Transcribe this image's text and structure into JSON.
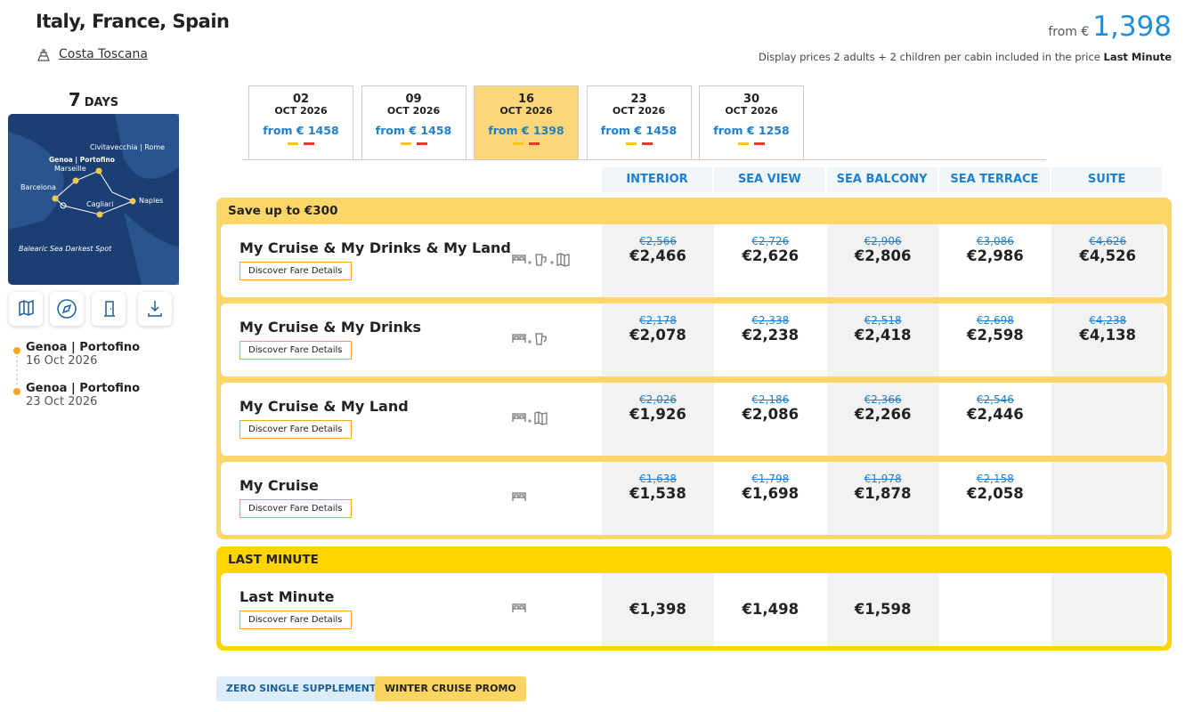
{
  "header": {
    "title": "Italy, France, Spain",
    "ship": "Costa Toscana",
    "from_label": "from €",
    "from_price": "1,398",
    "note": "Display prices 2 adults + 2 children per cabin included in the price",
    "note_bold": "Last Minute"
  },
  "itinerary": {
    "days": "7",
    "days_label": "DAYS",
    "map_labels": [
      "Civitavecchia | Rome",
      "Genoa | Portofino",
      "Marseille",
      "Barcelona",
      "Cagliari",
      "Naples",
      "Balearic Sea Darkest Spot"
    ],
    "stops": [
      {
        "port": "Genoa | Portofino",
        "date": "16 Oct 2026"
      },
      {
        "port": "Genoa | Portofino",
        "date": "23 Oct 2026"
      }
    ]
  },
  "dates": [
    {
      "day": "02",
      "month": "OCT 2026",
      "price": "from € 1458"
    },
    {
      "day": "09",
      "month": "OCT 2026",
      "price": "from € 1458"
    },
    {
      "day": "16",
      "month": "OCT 2026",
      "price": "from € 1398"
    },
    {
      "day": "23",
      "month": "OCT 2026",
      "price": "from € 1458"
    },
    {
      "day": "30",
      "month": "OCT 2026",
      "price": "from € 1258"
    }
  ],
  "cabins": [
    "INTERIOR",
    "SEA VIEW",
    "SEA BALCONY",
    "SEA TERRACE",
    "SUITE"
  ],
  "groups": [
    {
      "title": "Save up to €300",
      "fares": [
        {
          "name": "My Cruise & My Drinks & My Land",
          "link": "Discover Fare Details",
          "prices": [
            {
              "old": "€2,566",
              "new": "€2,466"
            },
            {
              "old": "€2,726",
              "new": "€2,626"
            },
            {
              "old": "€2,906",
              "new": "€2,806"
            },
            {
              "old": "€3,086",
              "new": "€2,986"
            },
            {
              "old": "€4,626",
              "new": "€4,526"
            }
          ]
        },
        {
          "name": "My Cruise & My Drinks",
          "link": "Discover Fare Details",
          "prices": [
            {
              "old": "€2,178",
              "new": "€2,078"
            },
            {
              "old": "€2,338",
              "new": "€2,238"
            },
            {
              "old": "€2,518",
              "new": "€2,418"
            },
            {
              "old": "€2,698",
              "new": "€2,598"
            },
            {
              "old": "€4,238",
              "new": "€4,138"
            }
          ]
        },
        {
          "name": "My Cruise & My Land",
          "link": "Discover Fare Details",
          "prices": [
            {
              "old": "€2,026",
              "new": "€1,926"
            },
            {
              "old": "€2,186",
              "new": "€2,086"
            },
            {
              "old": "€2,366",
              "new": "€2,266"
            },
            {
              "old": "€2,546",
              "new": "€2,446"
            }
          ]
        },
        {
          "name": "My Cruise",
          "link": "Discover Fare Details",
          "prices": [
            {
              "old": "€1,638",
              "new": "€1,538"
            },
            {
              "old": "€1,798",
              "new": "€1,698"
            },
            {
              "old": "€1,978",
              "new": "€1,878"
            },
            {
              "old": "€2,158",
              "new": "€2,058"
            }
          ]
        }
      ]
    },
    {
      "title": "LAST MINUTE",
      "fares": [
        {
          "name": "Last Minute",
          "link": "Discover Fare Details",
          "prices": [
            {
              "new": "€1,398"
            },
            {
              "new": "€1,498"
            },
            {
              "new": "€1,598"
            }
          ]
        }
      ]
    }
  ],
  "tags": [
    "ZERO SINGLE SUPPLEMENT",
    "WINTER CRUISE PROMO"
  ]
}
